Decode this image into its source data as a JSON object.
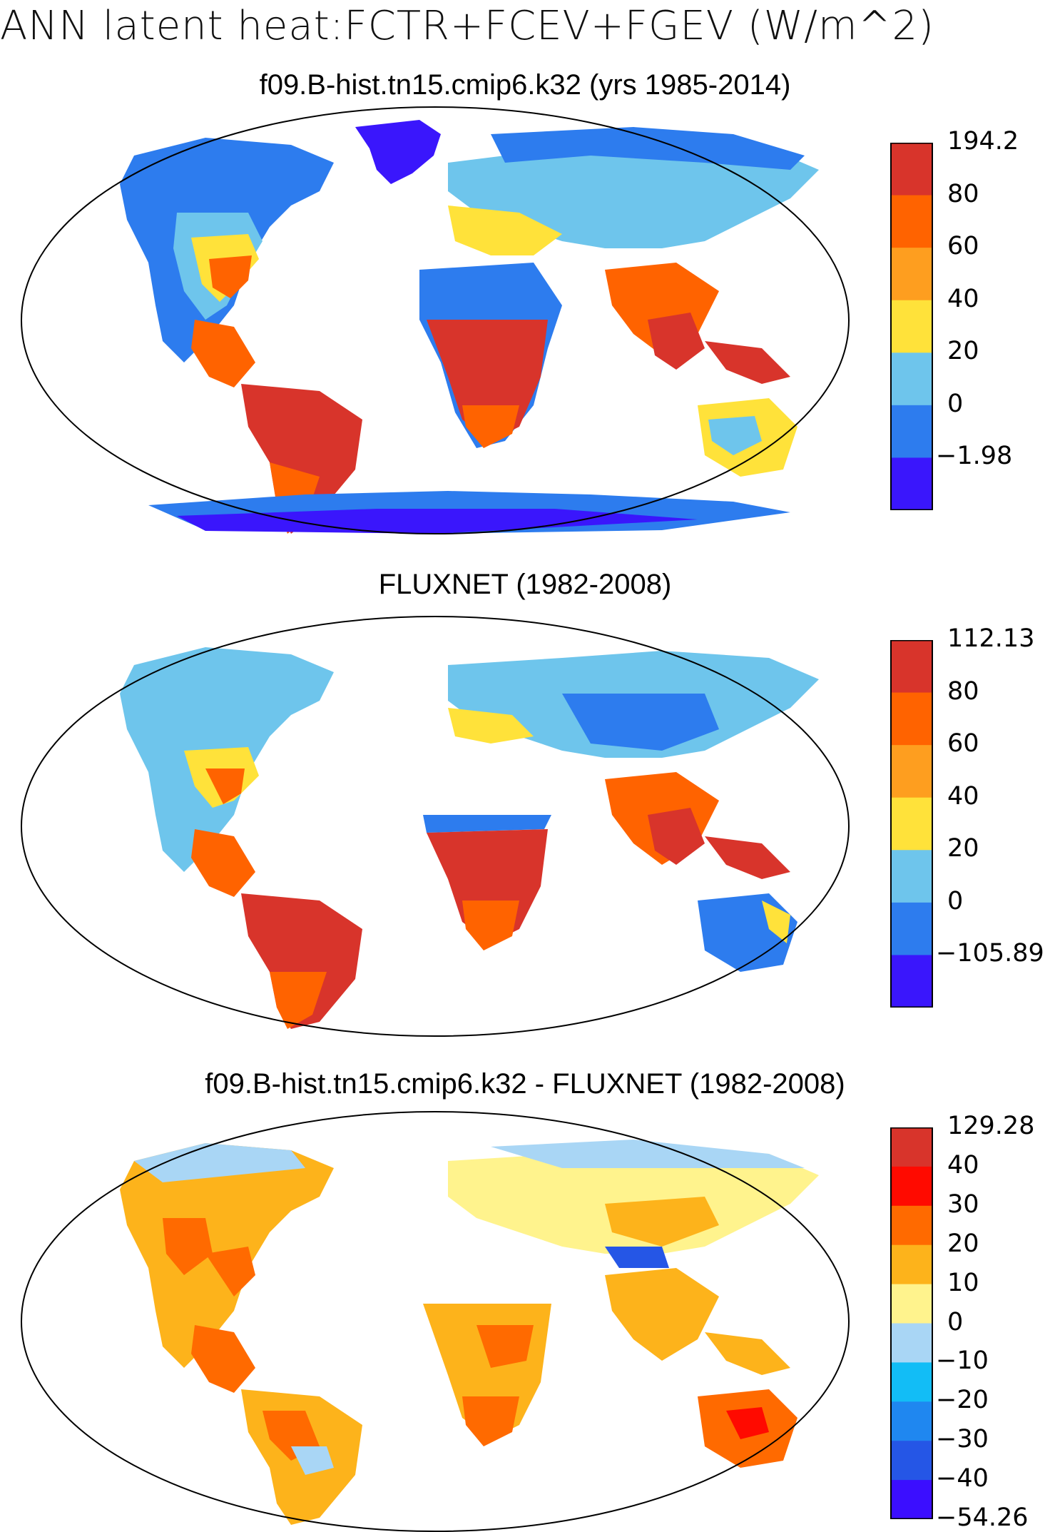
{
  "figure": {
    "title": "ANN latent heat:FCTR+FCEV+FGEV (W/m^2)"
  },
  "panels": [
    {
      "title": "f09.B-hist.tn15.cmip6.k32 (yrs 1985-2014)",
      "colorbar": {
        "labels": [
          "194.2",
          "80",
          "60",
          "40",
          "20",
          "0",
          "−1.98"
        ],
        "colors": [
          "#d8342b",
          "#ff6300",
          "#fe9e1f",
          "#ffe23a",
          "#6ec5ec",
          "#2d7cee",
          "#3a16fc"
        ]
      }
    },
    {
      "title": "FLUXNET (1982-2008)",
      "colorbar": {
        "labels": [
          "112.13",
          "80",
          "60",
          "40",
          "20",
          "0",
          "−105.89"
        ],
        "colors": [
          "#d8342b",
          "#ff6300",
          "#fe9e1f",
          "#ffe23a",
          "#6ec5ec",
          "#2d7cee",
          "#3a16fc"
        ]
      }
    },
    {
      "title": "f09.B-hist.tn15.cmip6.k32 - FLUXNET (1982-2008)",
      "colorbar": {
        "labels": [
          "129.28",
          "40",
          "30",
          "20",
          "10",
          "0",
          "−10",
          "−20",
          "−30",
          "−40",
          "−54.26"
        ],
        "colors": [
          "#d8342b",
          "#ff0a00",
          "#ff6a00",
          "#fdb31b",
          "#fff38d",
          "#a9d6f5",
          "#12bdf6",
          "#1f87f0",
          "#2556e6",
          "#3b0eff"
        ]
      }
    }
  ]
}
